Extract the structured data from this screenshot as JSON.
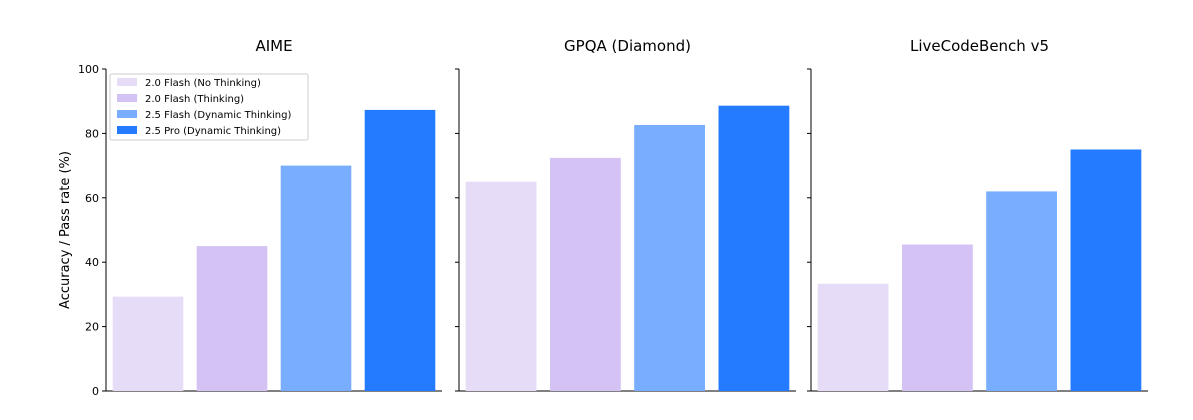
{
  "chart_data": {
    "type": "bar",
    "ylabel": "Accuracy / Pass rate (%)",
    "ylim": [
      0,
      100
    ],
    "yticks": [
      0,
      20,
      40,
      60,
      80,
      100
    ],
    "grid": false,
    "legend": {
      "placement": "top-left of first panel"
    },
    "series": [
      {
        "name": "2.0 Flash (No Thinking)",
        "color": "#e6dcf7"
      },
      {
        "name": "2.0 Flash (Thinking)",
        "color": "#d4c2f4"
      },
      {
        "name": "2.5 Flash (Dynamic Thinking)",
        "color": "#78adff"
      },
      {
        "name": "2.5 Pro (Dynamic Thinking)",
        "color": "#247bff"
      }
    ],
    "panels": [
      {
        "title": "AIME",
        "values": [
          29.3,
          45.0,
          70.0,
          87.3
        ]
      },
      {
        "title": "GPQA (Diamond)",
        "values": [
          65.0,
          72.4,
          82.6,
          88.6
        ]
      },
      {
        "title": "LiveCodeBench v5",
        "values": [
          33.3,
          45.5,
          62.0,
          75.0
        ]
      }
    ]
  }
}
